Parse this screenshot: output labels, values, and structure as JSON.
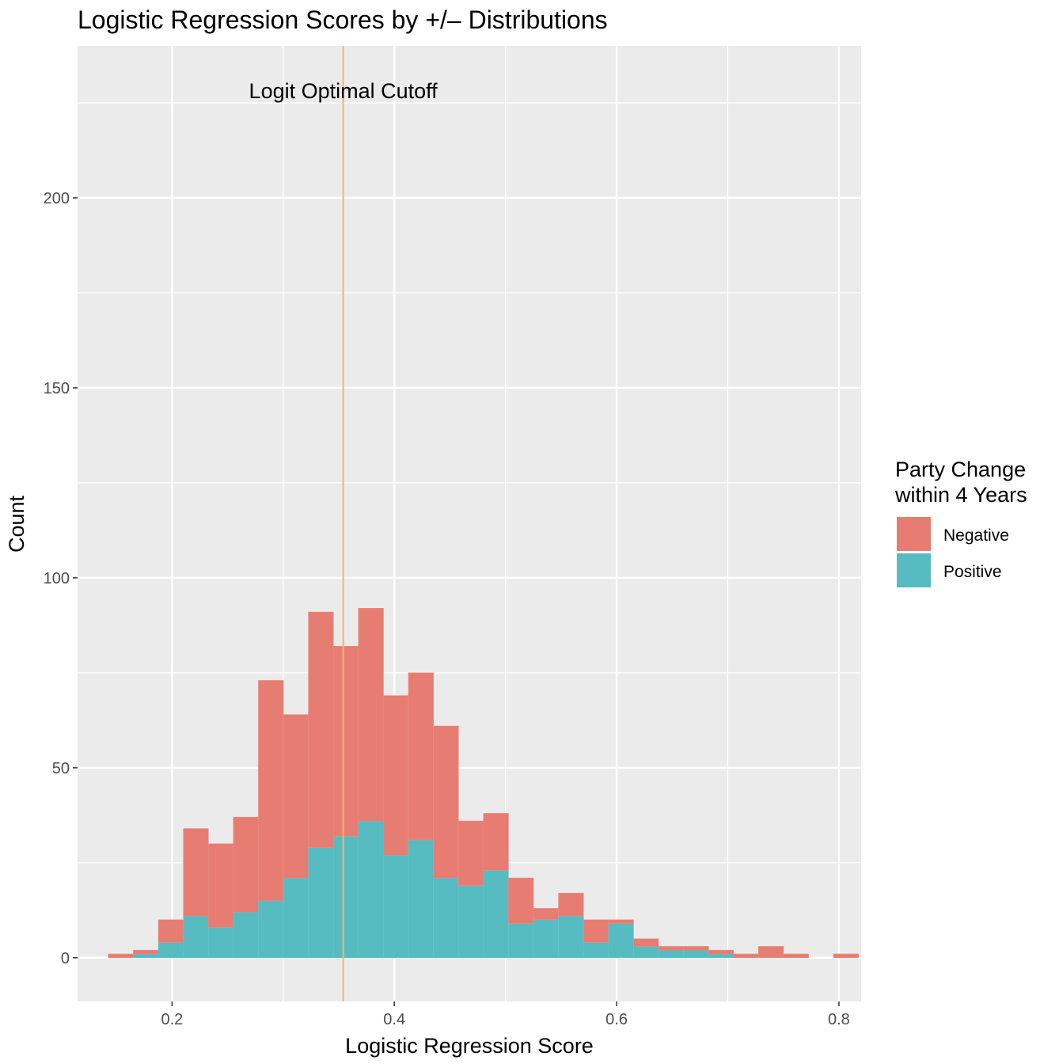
{
  "chart_data": {
    "type": "bar",
    "stacked": true,
    "title": "Logistic Regression Scores by +/– Distributions",
    "xlabel": "Logistic Regression Score",
    "ylabel": "Count",
    "xlim": [
      0.115,
      0.82
    ],
    "ylim": [
      -11.5,
      240
    ],
    "x_ticks": [
      0.2,
      0.4,
      0.6,
      0.8
    ],
    "x_tick_labels": [
      "0.2",
      "0.4",
      "0.6",
      "0.8"
    ],
    "y_ticks": [
      0,
      50,
      100,
      150,
      200
    ],
    "y_tick_labels": [
      "0",
      "50",
      "100",
      "150",
      "200"
    ],
    "grid": true,
    "bin_width": 0.0225,
    "bin_start": 0.1427,
    "bins": 30,
    "series": [
      {
        "name": "Positive",
        "color": "#56BCC2",
        "values": [
          0,
          1,
          4,
          11,
          8,
          12,
          15,
          21,
          29,
          32,
          36,
          27,
          31,
          21,
          19,
          23,
          9,
          10,
          11,
          4,
          9,
          3,
          2,
          2,
          1,
          0,
          0,
          0,
          0,
          0
        ]
      },
      {
        "name": "Negative",
        "color": "#E77D72",
        "values": [
          1,
          1,
          6,
          23,
          22,
          25,
          58,
          43,
          62,
          50,
          56,
          42,
          44,
          40,
          17,
          15,
          12,
          3,
          6,
          6,
          1,
          2,
          1,
          1,
          1,
          1,
          3,
          1,
          0,
          1
        ]
      }
    ],
    "cutoff": {
      "x": 0.354,
      "label": "Logit Optimal Cutoff",
      "color": "#F5B56B"
    },
    "legend": {
      "title": [
        "Party Change",
        "within 4 Years"
      ],
      "placement": "right",
      "entries": [
        "Negative",
        "Positive"
      ]
    }
  }
}
